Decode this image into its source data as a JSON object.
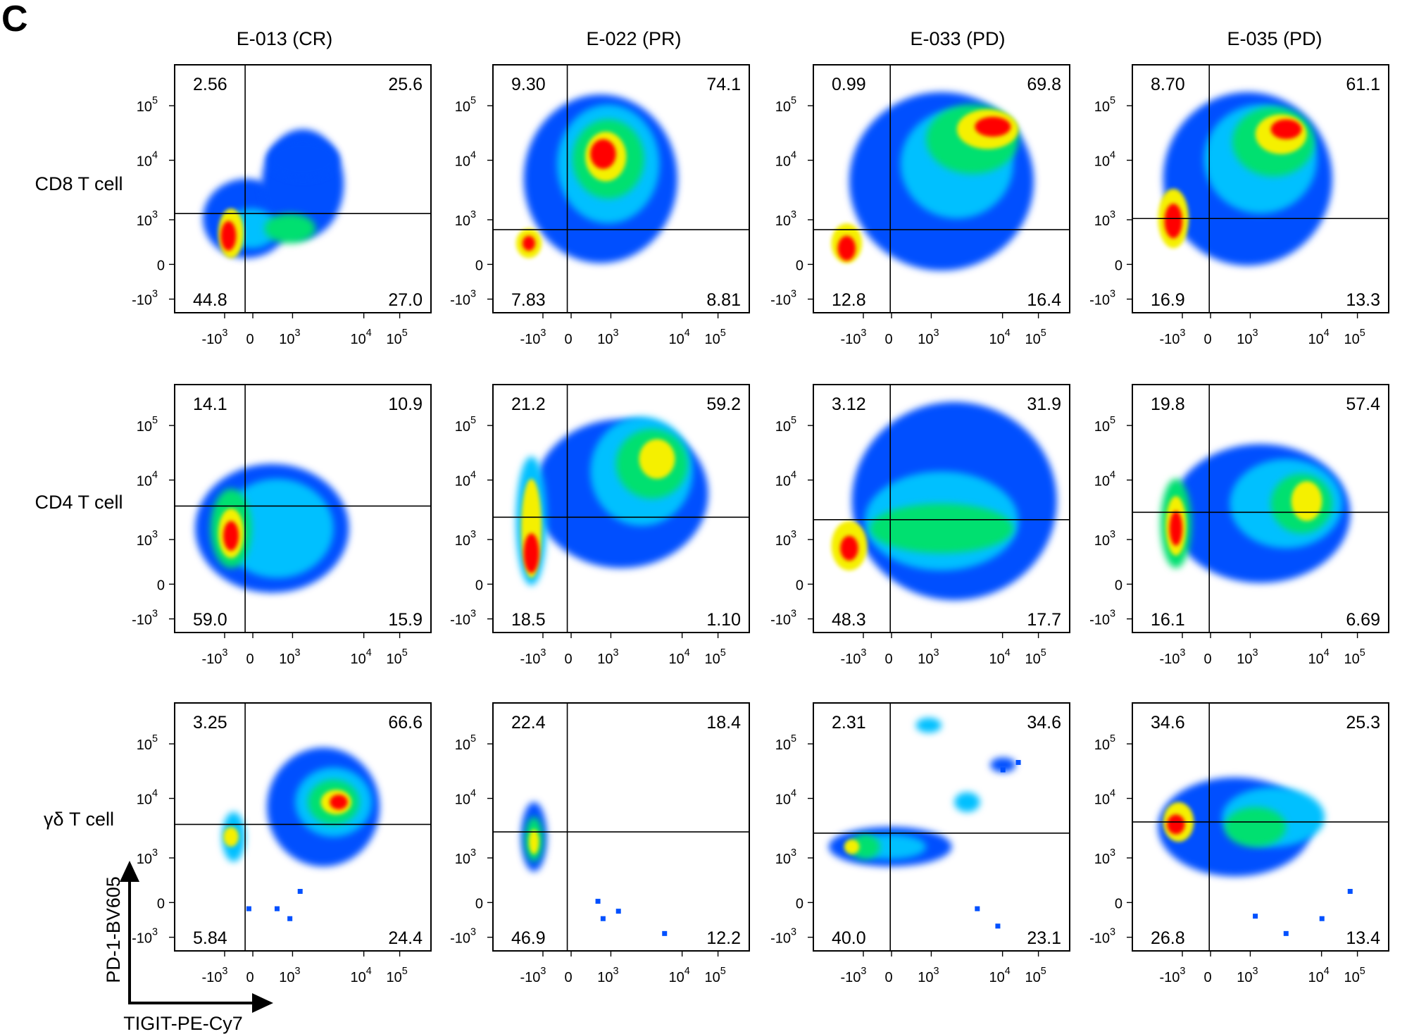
{
  "panel_letter": "C",
  "axis_tick_labels": {
    "x": [
      {
        "base": "-10",
        "exp": "3"
      },
      {
        "base": "0",
        "exp": ""
      },
      {
        "base": "10",
        "exp": "3"
      },
      {
        "base": "10",
        "exp": "4"
      },
      {
        "base": "10",
        "exp": "5"
      }
    ],
    "y": [
      {
        "base": "10",
        "exp": "5"
      },
      {
        "base": "10",
        "exp": "4"
      },
      {
        "base": "10",
        "exp": "3"
      },
      {
        "base": "0",
        "exp": ""
      },
      {
        "base": "-10",
        "exp": "3"
      }
    ]
  },
  "axis_titles": {
    "x": "TIGIT-PE-Cy7",
    "y": "PD-1-BV605"
  },
  "colors": {
    "high_density": "#ff0000",
    "mid_density": "#f5f000",
    "low_mid": "#00e070",
    "low": "#0050ff"
  },
  "chart_data": {
    "type": "heatmap",
    "description_type": "flow cytometry quadrant density plots",
    "x_axis": "TIGIT-PE-Cy7",
    "y_axis": "PD-1-BV605",
    "scale": "biexponential",
    "columns": [
      "E-013 (CR)",
      "E-022 (PR)",
      "E-033 (PD)",
      "E-035 (PD)"
    ],
    "rows": [
      "CD8 T cell",
      "CD4 T cell",
      "γδ T cell"
    ],
    "quadrant_order": [
      "upper-left",
      "upper-right",
      "lower-left",
      "lower-right"
    ],
    "quadrants": [
      [
        {
          "ul": "2.56",
          "ur": "25.6",
          "ll": "44.8",
          "lr": "27.0"
        },
        {
          "ul": "9.30",
          "ur": "74.1",
          "ll": "7.83",
          "lr": "8.81"
        },
        {
          "ul": "0.99",
          "ur": "69.8",
          "ll": "12.8",
          "lr": "16.4"
        },
        {
          "ul": "8.70",
          "ur": "61.1",
          "ll": "16.9",
          "lr": "13.3"
        }
      ],
      [
        {
          "ul": "14.1",
          "ur": "10.9",
          "ll": "59.0",
          "lr": "15.9"
        },
        {
          "ul": "21.2",
          "ur": "59.2",
          "ll": "18.5",
          "lr": "1.10"
        },
        {
          "ul": "3.12",
          "ur": "31.9",
          "ll": "48.3",
          "lr": "17.7"
        },
        {
          "ul": "19.8",
          "ur": "57.4",
          "ll": "16.1",
          "lr": "6.69"
        }
      ],
      [
        {
          "ul": "3.25",
          "ur": "66.6",
          "ll": "5.84",
          "lr": "24.4"
        },
        {
          "ul": "22.4",
          "ur": "18.4",
          "ll": "46.9",
          "lr": "12.2"
        },
        {
          "ul": "2.31",
          "ur": "34.6",
          "ll": "40.0",
          "lr": "23.1"
        },
        {
          "ul": "34.6",
          "ur": "25.3",
          "ll": "26.8",
          "lr": "13.4"
        }
      ]
    ]
  }
}
